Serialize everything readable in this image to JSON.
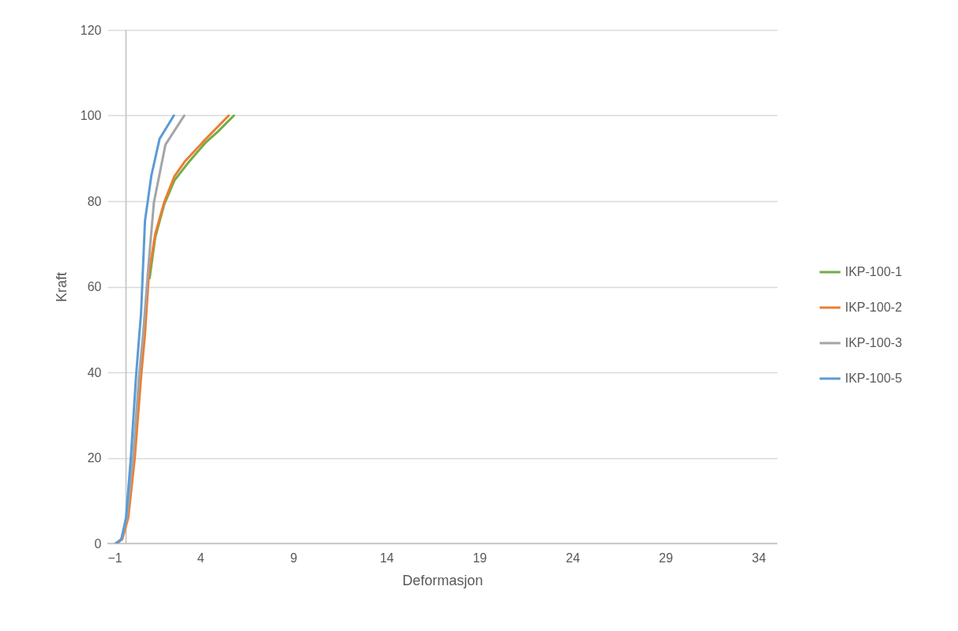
{
  "chart_data": {
    "type": "line",
    "xlabel": "Deformasjon",
    "ylabel": "Kraft",
    "xlim": [
      -1,
      35
    ],
    "ylim": [
      0,
      120
    ],
    "xticks": [
      -1,
      4,
      9,
      14,
      19,
      24,
      29,
      34
    ],
    "yticks": [
      0,
      20,
      40,
      60,
      80,
      100,
      120
    ],
    "grid": "y",
    "legend": "right",
    "marker": "none",
    "line_style": "solid",
    "series": [
      {
        "name": "IKP-100-1",
        "color": "#70ad47",
        "x": [
          1.27,
          1.57,
          2.05,
          2.6,
          3.29,
          4.26,
          4.95,
          5.8
        ],
        "values": [
          62,
          71.5,
          79.2,
          84.8,
          88.7,
          93.6,
          96.3,
          100
        ]
      },
      {
        "name": "IKP-100-2",
        "color": "#ed7d31",
        "x": [
          -0.5,
          -0.2,
          0.12,
          0.47,
          0.81,
          1.02,
          1.23,
          1.57,
          2.05,
          2.6,
          3.15,
          4.26,
          5.52
        ],
        "values": [
          0,
          1,
          6,
          20,
          39,
          49,
          63,
          72.3,
          79.7,
          85.8,
          89.2,
          94.4,
          100
        ]
      },
      {
        "name": "IKP-100-3",
        "color": "#a5a5a5",
        "x": [
          -0.58,
          -0.25,
          0.05,
          0.38,
          0.7,
          0.92,
          1.23,
          1.5,
          2.12,
          3.13
        ],
        "values": [
          0,
          1,
          6,
          20,
          39,
          49,
          66.2,
          79.7,
          93.2,
          100
        ]
      },
      {
        "name": "IKP-100-5",
        "color": "#5b9bd5",
        "x": [
          -0.5,
          -0.25,
          0,
          0.26,
          0.54,
          0.81,
          1.02,
          1.36,
          1.8,
          2.57
        ],
        "values": [
          0,
          1,
          6,
          20,
          39.1,
          53.9,
          75.4,
          85.9,
          94.5,
          100
        ]
      }
    ]
  }
}
